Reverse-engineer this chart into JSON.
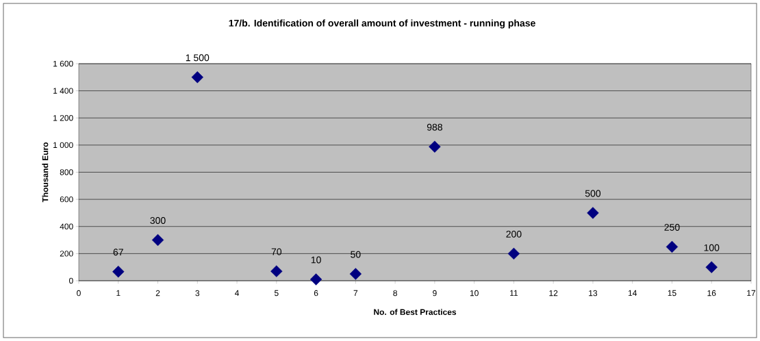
{
  "chart_data": {
    "type": "scatter",
    "title": "17/b. Identification of overall amount of investment - running phase",
    "xlabel": "No. of Best Practices",
    "ylabel": "Thousand Euro",
    "x": [
      1,
      2,
      3,
      5,
      6,
      7,
      9,
      11,
      13,
      15,
      16
    ],
    "values": [
      67,
      300,
      1500,
      70,
      10,
      50,
      988,
      200,
      500,
      250,
      100
    ],
    "value_labels": [
      "67",
      "300",
      "1 500",
      "70",
      "10",
      "50",
      "988",
      "200",
      "500",
      "250",
      "100"
    ],
    "color": "#000080",
    "marker": "diamond",
    "grid": "y",
    "xlim": [
      0,
      17
    ],
    "xticks": [
      0,
      1,
      2,
      3,
      4,
      5,
      6,
      7,
      8,
      9,
      10,
      11,
      12,
      13,
      14,
      15,
      16,
      17
    ],
    "ylim": [
      0,
      1600
    ],
    "yticks": [
      0,
      200,
      400,
      600,
      800,
      {
        "value": 1000,
        "label": "1 000"
      },
      {
        "value": 1200,
        "label": "1 200"
      },
      {
        "value": 1400,
        "label": "1 400"
      },
      {
        "value": 1600,
        "label": "1 600"
      }
    ]
  }
}
